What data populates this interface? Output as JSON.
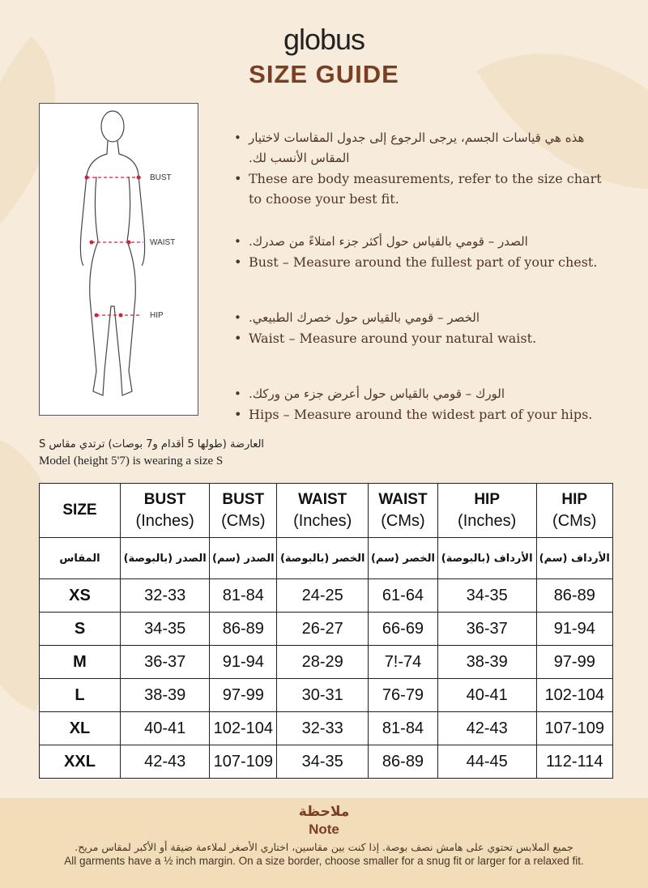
{
  "brand": "globus",
  "title": "SIZE GUIDE",
  "figure": {
    "labels": {
      "bust": "BUST",
      "waist": "WAIST",
      "hip": "HIP"
    }
  },
  "bullets": [
    {
      "ar": "هذه هي قياسات الجسم، يرجى الرجوع إلى جدول المقاسات لاختيار المقاس الأنسب لك.",
      "en": "These are body measurements, refer to the size chart to choose your best fit."
    },
    {
      "ar": "الصدر – قومي بالقياس حول أكثر جزء امتلاءً من صدرك.",
      "en": "Bust – Measure around the fullest part of your chest."
    },
    {
      "ar": "الخصر – قومي بالقياس حول خصرك الطبيعي.",
      "en": "Waist – Measure around your natural waist."
    },
    {
      "ar": "الورك – قومي بالقياس حول أعرض جزء من وركك.",
      "en": "Hips – Measure around the widest part of your hips."
    }
  ],
  "model": {
    "ar": "العارضة (طولها 5 أقدام و7 بوصات) ترتدي مقاس S",
    "en": "Model (height 5'7) is wearing a size S"
  },
  "table": {
    "headers": [
      [
        "SIZE",
        ""
      ],
      [
        "BUST",
        "(Inches)"
      ],
      [
        "BUST",
        "(CMs)"
      ],
      [
        "WAIST",
        "(Inches)"
      ],
      [
        "WAIST",
        "(CMs)"
      ],
      [
        "HIP",
        "(Inches)"
      ],
      [
        "HIP",
        "(CMs)"
      ]
    ],
    "headers_ar": [
      "المقاس",
      "الصدر (بالبوصة)",
      "الصدر (سم)",
      "الخصر (بالبوصة)",
      "الخصر (سم)",
      "الأرداف (بالبوصة)",
      "الأرداف (سم)"
    ],
    "rows": [
      [
        "XS",
        "32-33",
        "81-84",
        "24-25",
        "61-64",
        "34-35",
        "86-89"
      ],
      [
        "S",
        "34-35",
        "86-89",
        "26-27",
        "66-69",
        "36-37",
        "91-94"
      ],
      [
        "M",
        "36-37",
        "91-94",
        "28-29",
        "7!-74",
        "38-39",
        "97-99"
      ],
      [
        "L",
        "38-39",
        "97-99",
        "30-31",
        "76-79",
        "40-41",
        "102-104"
      ],
      [
        "XL",
        "40-41",
        "102-104",
        "32-33",
        "81-84",
        "42-43",
        "107-109"
      ],
      [
        "XXL",
        "42-43",
        "107-109",
        "34-35",
        "86-89",
        "44-45",
        "112-114"
      ]
    ]
  },
  "note": {
    "title_ar": "ملاحظة",
    "title_en": "Note",
    "text_ar": "جميع الملابس تحتوي على هامش نصف بوصة. إذا كنت بين مقاسين، اختاري الأصغر لملاءمة ضيقة أو الأكبر لمقاس مريح.",
    "text_en": "All garments have a ½ inch margin. On a size border, choose smaller for a snug fit or larger for a relaxed fit."
  },
  "colors": {
    "accent": "#7a3e22",
    "background": "#f7ecdb",
    "footer": "#f1deb8",
    "marker": "#d0243a"
  }
}
